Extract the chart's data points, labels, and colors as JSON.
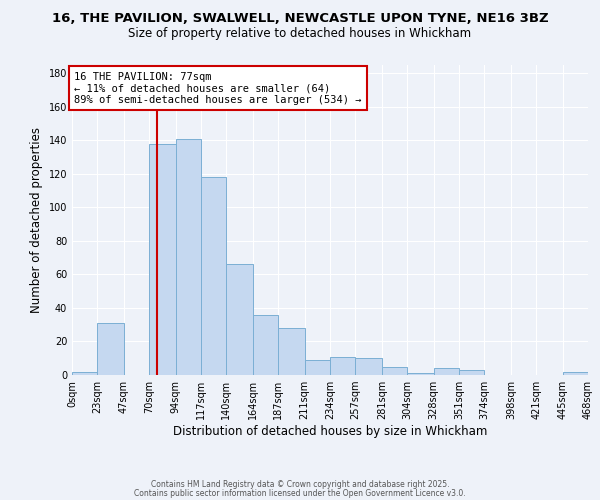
{
  "title_line1": "16, THE PAVILION, SWALWELL, NEWCASTLE UPON TYNE, NE16 3BZ",
  "title_line2": "Size of property relative to detached houses in Whickham",
  "xlabel": "Distribution of detached houses by size in Whickham",
  "ylabel": "Number of detached properties",
  "bin_edges": [
    0,
    23,
    47,
    70,
    94,
    117,
    140,
    164,
    187,
    211,
    234,
    257,
    281,
    304,
    328,
    351,
    374,
    398,
    421,
    445,
    468
  ],
  "bar_heights": [
    2,
    31,
    0,
    138,
    141,
    118,
    66,
    36,
    28,
    9,
    11,
    10,
    5,
    1,
    4,
    3,
    0,
    0,
    0,
    2
  ],
  "bar_color": "#c5d8f0",
  "bar_edge_color": "#7bafd4",
  "property_size": 77,
  "annotation_title": "16 THE PAVILION: 77sqm",
  "annotation_line2": "← 11% of detached houses are smaller (64)",
  "annotation_line3": "89% of semi-detached houses are larger (534) →",
  "vline_color": "#cc0000",
  "vline_x": 77,
  "ylim": [
    0,
    185
  ],
  "yticks": [
    0,
    20,
    40,
    60,
    80,
    100,
    120,
    140,
    160,
    180
  ],
  "tick_labels": [
    "0sqm",
    "23sqm",
    "47sqm",
    "70sqm",
    "94sqm",
    "117sqm",
    "140sqm",
    "164sqm",
    "187sqm",
    "211sqm",
    "234sqm",
    "257sqm",
    "281sqm",
    "304sqm",
    "328sqm",
    "351sqm",
    "374sqm",
    "398sqm",
    "421sqm",
    "445sqm",
    "468sqm"
  ],
  "footer_line1": "Contains HM Land Registry data © Crown copyright and database right 2025.",
  "footer_line2": "Contains public sector information licensed under the Open Government Licence v3.0.",
  "background_color": "#eef2f9",
  "grid_color": "#ffffff",
  "annotation_box_color": "#ffffff",
  "annotation_box_edge": "#cc0000",
  "title_fontsize": 9.5,
  "subtitle_fontsize": 8.5,
  "xlabel_fontsize": 8.5,
  "ylabel_fontsize": 8.5,
  "tick_fontsize": 7,
  "annotation_fontsize": 7.5,
  "footer_fontsize": 5.5
}
